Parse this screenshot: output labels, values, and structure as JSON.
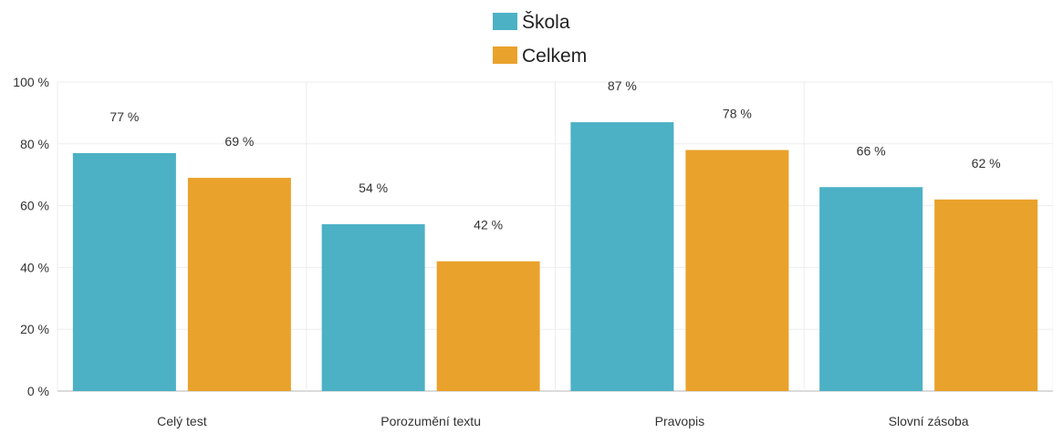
{
  "chart_data": {
    "type": "bar",
    "categories": [
      "Celý test",
      "Porozumění textu",
      "Pravopis",
      "Slovní zásoba"
    ],
    "series": [
      {
        "name": "Škola",
        "color": "#4cb1c5",
        "values": [
          77,
          54,
          87,
          66
        ],
        "labels": [
          "77 %",
          "54 %",
          "87 %",
          "66 %"
        ]
      },
      {
        "name": "Celkem",
        "color": "#e9a22b",
        "values": [
          69,
          42,
          78,
          62
        ],
        "labels": [
          "69 %",
          "42 %",
          "78 %",
          "62 %"
        ]
      }
    ],
    "ylim": [
      0,
      100
    ],
    "yticks": [
      0,
      20,
      40,
      60,
      80,
      100
    ],
    "ytick_labels": [
      "0 %",
      "20 %",
      "40 %",
      "60 %",
      "80 %",
      "100 %"
    ],
    "grid": true,
    "legend_position": "top-center"
  }
}
